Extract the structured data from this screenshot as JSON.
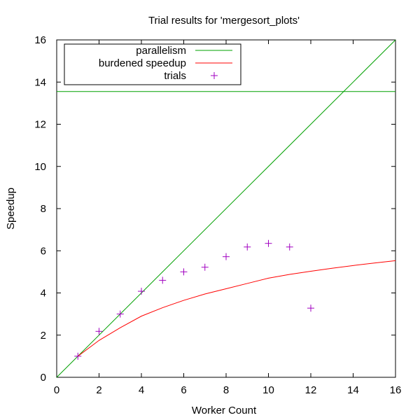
{
  "chart_data": {
    "type": "line",
    "title": "Trial results for 'mergesort_plots'",
    "xlabel": "Worker Count",
    "ylabel": "Speedup",
    "xlim": [
      0,
      16
    ],
    "ylim": [
      0,
      16
    ],
    "xticks": [
      0,
      2,
      4,
      6,
      8,
      10,
      12,
      14,
      16
    ],
    "yticks": [
      0,
      2,
      4,
      6,
      8,
      10,
      12,
      14,
      16
    ],
    "grid": false,
    "legend_position": "top-left",
    "parallelism_value": 13.55,
    "series": [
      {
        "name": "parallelism",
        "kind": "line",
        "color": "#00a000",
        "note": "linear speedup y=x up to parallelism cap, plus horizontal line at parallelism",
        "x": [
          0,
          16
        ],
        "y": [
          0,
          16
        ]
      },
      {
        "name": "burdened speedup",
        "kind": "line",
        "color": "#ff0000",
        "x": [
          1,
          2,
          3,
          4,
          5,
          6,
          7,
          8,
          9,
          10,
          11,
          12,
          13,
          14,
          15,
          16
        ],
        "y": [
          1.0,
          1.75,
          2.35,
          2.9,
          3.3,
          3.65,
          3.95,
          4.2,
          4.45,
          4.7,
          4.88,
          5.03,
          5.17,
          5.3,
          5.42,
          5.53
        ]
      },
      {
        "name": "trials",
        "kind": "points",
        "color": "#a000c0",
        "marker": "+",
        "x": [
          1,
          2,
          3,
          4,
          5,
          6,
          7,
          8,
          9,
          10,
          11,
          12
        ],
        "y": [
          1.0,
          2.18,
          3.0,
          4.08,
          4.6,
          5.0,
          5.22,
          5.72,
          6.18,
          6.35,
          6.18,
          3.28
        ]
      }
    ]
  }
}
